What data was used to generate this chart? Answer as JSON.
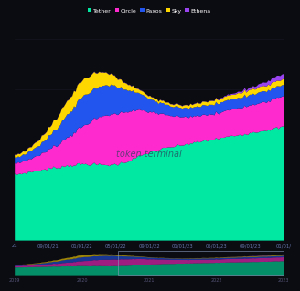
{
  "background_color": "#0b0b12",
  "plot_bg_color": "#0b0b12",
  "legend": [
    "Tether",
    "Circle",
    "Paxos",
    "Sky",
    "Ethena"
  ],
  "legend_colors": [
    "#00e8a2",
    "#ff2acd",
    "#2255ee",
    "#ffd700",
    "#9944ee"
  ],
  "watermark": "token terminal",
  "x_tick_labels": [
    "21",
    "09/01/21",
    "01/01/22",
    "05/01/22",
    "09/01/22",
    "01/01/23",
    "05/01/23",
    "09/01/23",
    "01/01/"
  ],
  "mini_year_labels": [
    "2019",
    "2020",
    "2021",
    "2022",
    "2023"
  ],
  "n_points": 160,
  "ylim_max": 165
}
